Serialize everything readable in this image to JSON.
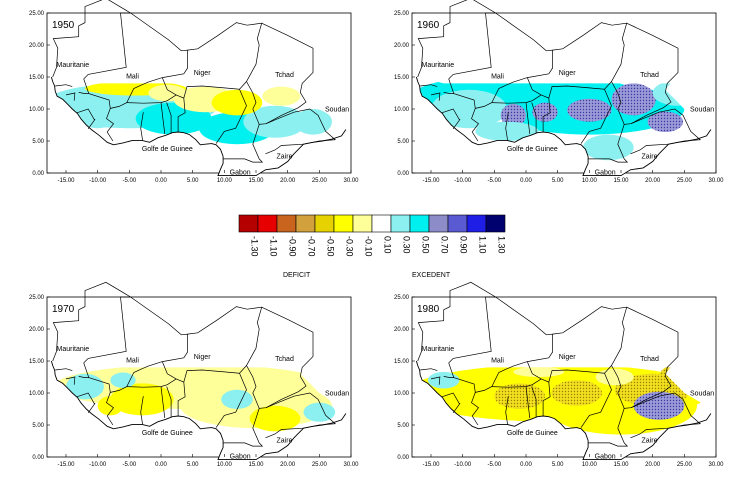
{
  "maps": [
    {
      "year": "1950",
      "anomaly": "mixed-wet-west-dry-center"
    },
    {
      "year": "1960",
      "anomaly": "strong-excess"
    },
    {
      "year": "1970",
      "anomaly": "mild-deficit"
    },
    {
      "year": "1980",
      "anomaly": "strong-deficit"
    }
  ],
  "place_names": {
    "mauritanie": "Mauritanie",
    "mali": "Mali",
    "niger": "Niger",
    "tchad": "Tchad",
    "soudan": "Soudan",
    "golfe": "Golfe de Guinee",
    "zaire": "Zaire",
    "gabon": "Gabon"
  },
  "x_ticks": [
    "-15.00",
    "-10.00",
    "-5.00",
    "0.00",
    "5.00",
    "10.00",
    "15.00",
    "20.00",
    "25.00",
    "30.00"
  ],
  "y_ticks": [
    "25.00",
    "20.00",
    "15.00",
    "10.00",
    "5.00",
    "0.00"
  ],
  "legend": {
    "classes": [
      {
        "label": "-1.30",
        "color": "#b50000"
      },
      {
        "label": "-1.10",
        "color": "#e60000"
      },
      {
        "label": "-0.90",
        "color": "#c8641e"
      },
      {
        "label": "-0.70",
        "color": "#d2a03c"
      },
      {
        "label": "-0.50",
        "color": "#e6d200"
      },
      {
        "label": "-0.30",
        "color": "#ffff00"
      },
      {
        "label": "-0.10",
        "color": "#ffff9a"
      },
      {
        "label": "0.10",
        "color": "#ffffff"
      },
      {
        "label": "0.30",
        "color": "#8cf0f0"
      },
      {
        "label": "0.50",
        "color": "#00f0f0"
      },
      {
        "label": "0.70",
        "color": "#8c8cc8"
      },
      {
        "label": "0.90",
        "color": "#5a5ad2"
      },
      {
        "label": "1.10",
        "color": "#1e1ee6"
      },
      {
        "label": "1.30",
        "color": "#00006e"
      }
    ],
    "deficit_label": "DEFICIT",
    "excess_label": "EXCEDENT"
  }
}
